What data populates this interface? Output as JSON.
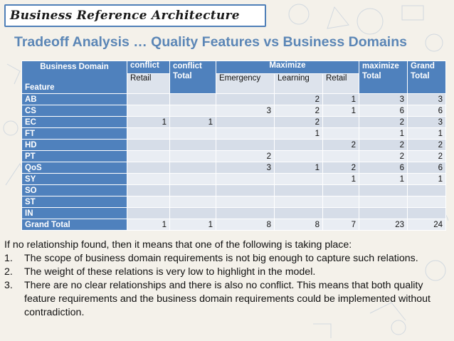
{
  "banner": {
    "title": "Business Reference Architecture"
  },
  "subtitle": "Tradeoff Analysis … Quality Features vs Business Domains",
  "table": {
    "corner_top": "Business Domain",
    "corner_bottom": "Feature",
    "conflict_label": "conflict",
    "conflict_sub": "Retail",
    "conflict_total": "conflict Total",
    "maximize_label": "Maximize",
    "maximize_subs": [
      "Emergency",
      "Learning",
      "Retail"
    ],
    "maximize_total": "maximize Total",
    "grand_total": "Grand Total",
    "rows": [
      {
        "feature": "AB",
        "values": [
          "",
          "",
          "",
          "2",
          "1",
          "3",
          "3"
        ]
      },
      {
        "feature": "CS",
        "values": [
          "",
          "",
          "3",
          "2",
          "1",
          "6",
          "6"
        ]
      },
      {
        "feature": "EC",
        "values": [
          "1",
          "1",
          "",
          "2",
          "",
          "2",
          "3"
        ]
      },
      {
        "feature": "FT",
        "values": [
          "",
          "",
          "",
          "1",
          "",
          "1",
          "1"
        ]
      },
      {
        "feature": "HD",
        "values": [
          "",
          "",
          "",
          "",
          "2",
          "2",
          "2"
        ]
      },
      {
        "feature": "PT",
        "values": [
          "",
          "",
          "2",
          "",
          "",
          "2",
          "2"
        ]
      },
      {
        "feature": "QoS",
        "values": [
          "",
          "",
          "3",
          "1",
          "2",
          "6",
          "6"
        ]
      },
      {
        "feature": "SY",
        "values": [
          "",
          "",
          "",
          "",
          "1",
          "1",
          "1"
        ]
      },
      {
        "feature": "SO",
        "values": [
          "",
          "",
          "",
          "",
          "",
          "",
          ""
        ]
      },
      {
        "feature": "ST",
        "values": [
          "",
          "",
          "",
          "",
          "",
          "",
          ""
        ]
      },
      {
        "feature": "IN",
        "values": [
          "",
          "",
          "",
          "",
          "",
          "",
          ""
        ]
      }
    ],
    "total_row": {
      "feature": "Grand Total",
      "values": [
        "1",
        "1",
        "8",
        "8",
        "7",
        "23",
        "24"
      ]
    }
  },
  "text": {
    "intro": "If no relationship found, then it means that one of the following is taking place:",
    "items": [
      {
        "num": "1.",
        "text": "The scope of business domain requirements is not big enough to capture such relations."
      },
      {
        "num": "2.",
        "text": "The weight of these relations is very low to highlight in the model."
      },
      {
        "num": "3.",
        "text": "There are no clear relationships and there is also no conflict.  This means that both quality feature requirements and the business domain requirements could be implemented without contradiction."
      }
    ]
  }
}
